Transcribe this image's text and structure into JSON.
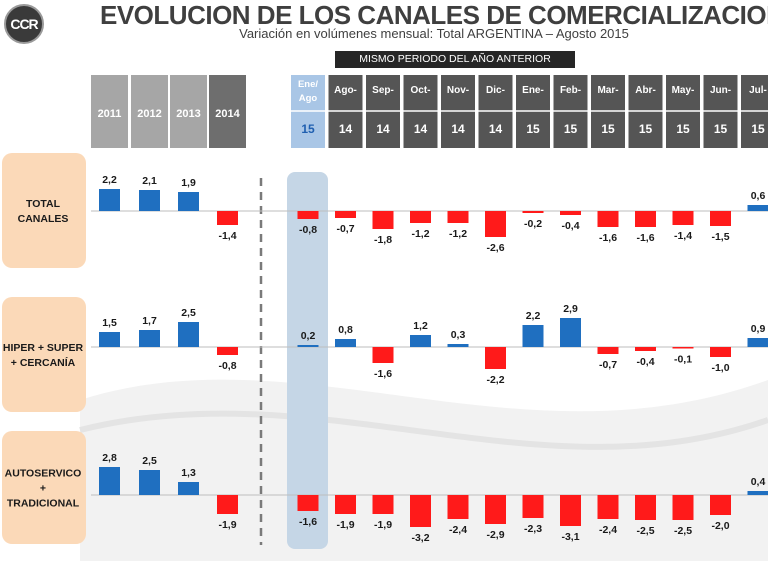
{
  "header": {
    "logo_text": "CCR",
    "title": "EVOLUCION DE LOS CANALES DE COMERCIALIZACION",
    "subtitle": "Variación en volúmenes mensual: Total ARGENTINA –  Agosto 2015",
    "banner": "MISMO PERIODO DEL AÑO ANTERIOR"
  },
  "colors": {
    "positive": "#1f6fc0",
    "negative": "#ff1a1a",
    "annual_header": "#a6a6a6",
    "current_year_header": "#6e6e6e",
    "month_header": "#555555",
    "highlight_header": "#a9c6e6",
    "highlight_column": "#c5d6e6",
    "row_label_bg": "#fbd9b8"
  },
  "chart_data": {
    "type": "bar",
    "annual_columns": [
      {
        "label": "2011",
        "style": "annual"
      },
      {
        "label": "2012",
        "style": "annual"
      },
      {
        "label": "2013",
        "style": "annual"
      },
      {
        "label": "2014",
        "style": "current"
      }
    ],
    "monthly_columns": [
      {
        "month": "Ene/ Ago",
        "year": "15",
        "highlight": true
      },
      {
        "month": "Ago-",
        "year": "14",
        "highlight": false
      },
      {
        "month": "Sep-",
        "year": "14",
        "highlight": false
      },
      {
        "month": "Oct-",
        "year": "14",
        "highlight": false
      },
      {
        "month": "Nov-",
        "year": "14",
        "highlight": false
      },
      {
        "month": "Dic-",
        "year": "14",
        "highlight": false
      },
      {
        "month": "Ene-",
        "year": "15",
        "highlight": false
      },
      {
        "month": "Feb-",
        "year": "15",
        "highlight": false
      },
      {
        "month": "Mar-",
        "year": "15",
        "highlight": false
      },
      {
        "month": "Abr-",
        "year": "15",
        "highlight": false
      },
      {
        "month": "May-",
        "year": "15",
        "highlight": false
      },
      {
        "month": "Jun-",
        "year": "15",
        "highlight": false
      },
      {
        "month": "Jul-",
        "year": "15",
        "highlight": false
      }
    ],
    "series": [
      {
        "name": "TOTAL CANALES",
        "annual": [
          2.2,
          2.1,
          1.9,
          -1.4
        ],
        "annual_labels": [
          "2,2",
          "2,1",
          "1,9",
          "-1,4"
        ],
        "monthly": [
          -0.8,
          -0.7,
          -1.8,
          -1.2,
          -1.2,
          -2.6,
          -0.2,
          -0.4,
          -1.6,
          -1.6,
          -1.4,
          -1.5,
          0.6
        ],
        "monthly_labels": [
          "-0,8",
          "-0,7",
          "-1,8",
          "-1,2",
          "-1,2",
          "-2,6",
          "-0,2",
          "-0,4",
          "-1,6",
          "-1,6",
          "-1,4",
          "-1,5",
          "0,6"
        ]
      },
      {
        "name": "HIPER + SUPER + CERCANÍA",
        "annual": [
          1.5,
          1.7,
          2.5,
          -0.8
        ],
        "annual_labels": [
          "1,5",
          "1,7",
          "2,5",
          "-0,8"
        ],
        "monthly": [
          0.2,
          0.8,
          -1.6,
          1.2,
          0.3,
          -2.2,
          2.2,
          2.9,
          -0.7,
          -0.4,
          -0.1,
          -1.0,
          0.9
        ],
        "monthly_labels": [
          "0,2",
          "0,8",
          "-1,6",
          "1,2",
          "0,3",
          "-2,2",
          "2,2",
          "2,9",
          "-0,7",
          "-0,4",
          "-0,1",
          "-1,0",
          "0,9"
        ]
      },
      {
        "name": "AUTOSERVICO + TRADICIONAL",
        "annual": [
          2.8,
          2.5,
          1.3,
          -1.9
        ],
        "annual_labels": [
          "2,8",
          "2,5",
          "1,3",
          "-1,9"
        ],
        "monthly": [
          -1.6,
          -1.9,
          -1.9,
          -3.2,
          -2.4,
          -2.9,
          -2.3,
          -3.1,
          -2.4,
          -2.5,
          -2.5,
          -2.0,
          0.4
        ],
        "monthly_labels": [
          "-1,6",
          "-1,9",
          "-1,9",
          "-3,2",
          "-2,4",
          "-2,9",
          "-2,3",
          "-3,1",
          "-2,4",
          "-2,5",
          "-2,5",
          "-2,0",
          "0,4"
        ]
      }
    ],
    "row_labels": [
      [
        "TOTAL",
        "CANALES"
      ],
      [
        "HIPER + SUPER",
        "+ CERCANÍA"
      ],
      [
        "AUTOSERVICO",
        "+",
        "TRADICIONAL"
      ]
    ],
    "grid": false,
    "legend": "none"
  }
}
